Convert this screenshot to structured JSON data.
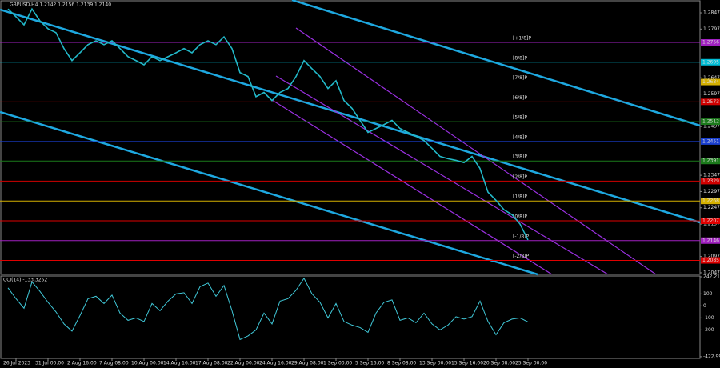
{
  "chart_data": [
    {
      "type": "line",
      "title": "GBPUSD,H4  1.2142 1.2156 1.2139 1.2140",
      "categories": [
        null,
        "26 Jul 2023",
        null,
        null,
        null,
        "31 Jul 00:00",
        null,
        null,
        null,
        "2 Aug 16:00",
        null,
        null,
        null,
        "7 Aug 08:00",
        null,
        null,
        null,
        "10 Aug 00:00",
        null,
        null,
        null,
        "14 Aug 16:00",
        null,
        null,
        null,
        "17 Aug 08:00",
        null,
        null,
        null,
        "22 Aug 00:00",
        null,
        null,
        null,
        "24 Aug 16:00",
        null,
        null,
        null,
        "29 Aug 08:00",
        null,
        null,
        null,
        "1 Sep 00:00",
        null,
        null,
        null,
        "5 Sep 16:00",
        null,
        null,
        null,
        "8 Sep 08:00",
        null,
        null,
        null,
        "13 Sep 00:00",
        null,
        null,
        null,
        "15 Sep 16:00",
        null,
        null,
        null,
        "20 Sep 08:00",
        null,
        null,
        null,
        "25 Sep 00:00"
      ],
      "series": [
        {
          "color": "#22b8c8",
          "values": [
            1.2859,
            1.2835,
            1.281,
            1.2859,
            1.2822,
            1.2798,
            1.2786,
            1.2737,
            1.27,
            1.2724,
            1.2749,
            1.2761,
            1.2749,
            1.2761,
            1.2737,
            1.2712,
            1.27,
            1.2687,
            1.2712,
            1.27,
            1.2712,
            1.2724,
            1.2737,
            1.2724,
            1.2749,
            1.2761,
            1.2749,
            1.2773,
            1.2737,
            1.2663,
            1.2651,
            1.2589,
            1.2602,
            1.2577,
            1.2602,
            1.2614,
            1.2651,
            1.27,
            1.2675,
            1.2651,
            1.2614,
            1.2638,
            1.2577,
            1.2553,
            1.2516,
            1.2479,
            1.2491,
            1.2503,
            1.2516,
            1.2491,
            1.2479,
            1.2467,
            1.2454,
            1.243,
            1.2405,
            1.2398,
            1.2393,
            1.2386,
            1.2405,
            1.2368,
            1.2295,
            1.227,
            1.2241,
            1.2226,
            1.2197,
            1.2148
          ]
        }
      ],
      "ylim": [
        1.2042,
        1.2884
      ],
      "yticks": [
        1.2847,
        1.2797,
        1.2647,
        1.2597,
        1.2497,
        1.2347,
        1.2297,
        1.2247,
        1.2197,
        1.2097,
        1.2047
      ],
      "levels": [
        {
          "label": "[+1/8]P",
          "value": 1.2756,
          "color": "#a020c0"
        },
        {
          "label": "[8/8]P",
          "value": 1.2695,
          "color": "#00bcd4"
        },
        {
          "label": "[7/8]P",
          "value": 1.2634,
          "color": "#d4b000"
        },
        {
          "label": "[6/8]P",
          "value": 1.2573,
          "color": "#d00000"
        },
        {
          "label": "[5/8]P",
          "value": 1.2512,
          "color": "#1b7a1b"
        },
        {
          "label": "[4/8]P",
          "value": 1.2451,
          "color": "#1a3fd0"
        },
        {
          "label": "[3/8]P",
          "value": 1.2391,
          "color": "#1b7a1b"
        },
        {
          "label": "[2/8]P",
          "value": 1.2329,
          "color": "#d00000"
        },
        {
          "label": "[1/8]P",
          "value": 1.2268,
          "color": "#d4b000"
        },
        {
          "label": "[0/8]P",
          "value": 1.2207,
          "color": "#e00000"
        },
        {
          "label": "[-1/8]P",
          "value": 1.2146,
          "color": "#a020c0"
        },
        {
          "label": "[-2/8]P",
          "value": 1.2085,
          "color": "#e00000"
        }
      ]
    },
    {
      "type": "line",
      "title": "CCI(14) -133.3252",
      "series": [
        {
          "color": "#40c8d8",
          "values": [
            150,
            60,
            -20,
            200,
            120,
            30,
            -50,
            -150,
            -210,
            -80,
            60,
            80,
            20,
            90,
            -60,
            -120,
            -100,
            -130,
            20,
            -40,
            40,
            100,
            110,
            20,
            160,
            190,
            80,
            170,
            -40,
            -280,
            -250,
            -200,
            -60,
            -150,
            40,
            60,
            130,
            230,
            100,
            30,
            -100,
            20,
            -130,
            -160,
            -180,
            -220,
            -60,
            30,
            50,
            -120,
            -100,
            -140,
            -60,
            -150,
            -200,
            -160,
            -90,
            -110,
            -90,
            40,
            -130,
            -240,
            -140,
            -110,
            -100,
            -133.3252
          ]
        }
      ],
      "ylim": [
        -437,
        242.2183
      ],
      "yticks": [
        242.2183,
        100,
        0,
        -100,
        -200,
        -422.9946
      ]
    }
  ]
}
